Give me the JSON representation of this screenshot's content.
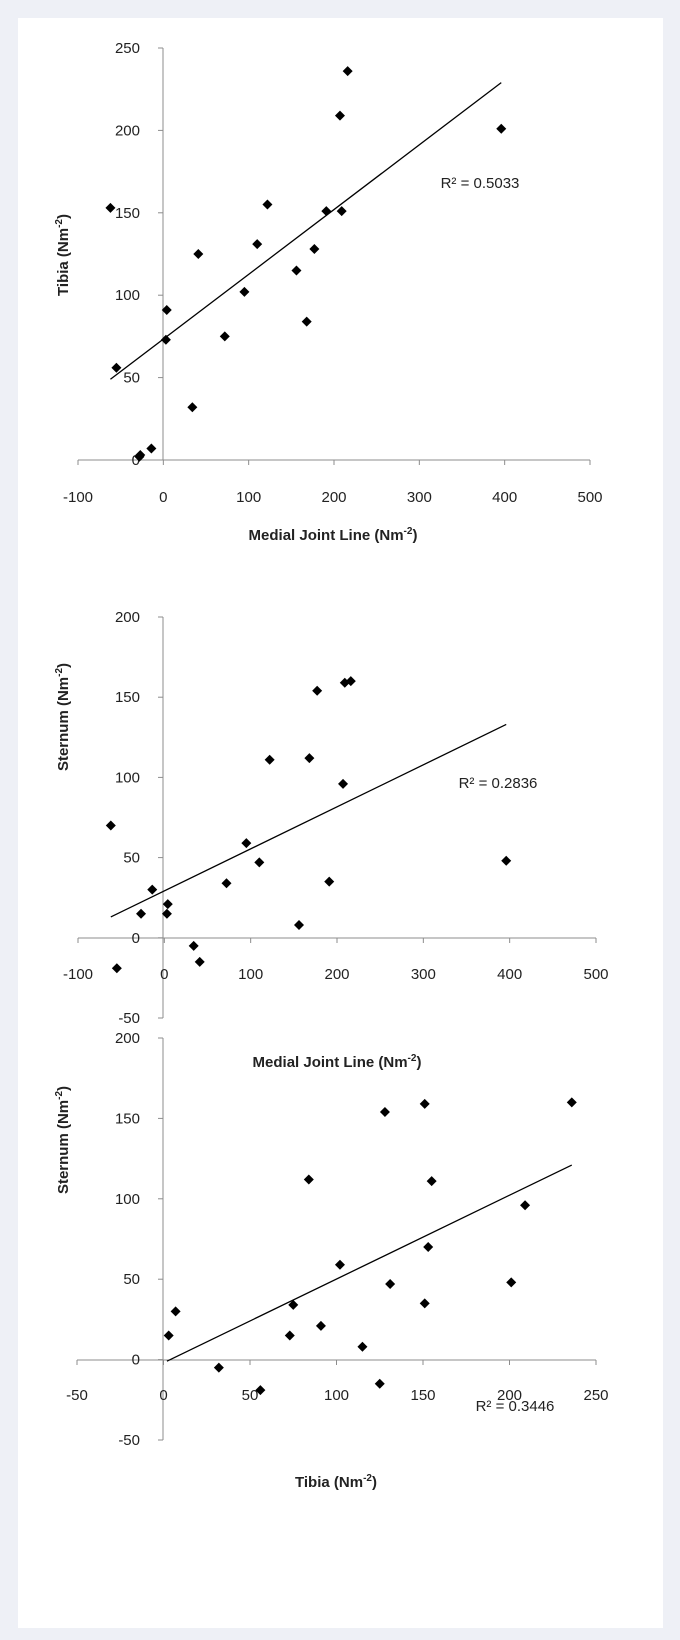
{
  "chart_data": [
    {
      "type": "scatter",
      "xlabel": "Medial Joint Line (Nm",
      "xlabel_sup": "-2",
      "xlabel_end": ")",
      "ylabel": "Tibia (Nm",
      "ylabel_sup": "-2",
      "ylabel_end": ")",
      "xlim": [
        -100,
        500
      ],
      "ylim": [
        0,
        250
      ],
      "xticks": [
        "-100",
        "0",
        "100",
        "200",
        "300",
        "400",
        "500"
      ],
      "yticks": [
        "0",
        "50",
        "100",
        "150",
        "200",
        "250"
      ],
      "x": [
        -62,
        -55,
        -28,
        -27,
        -14,
        3,
        4,
        34,
        41,
        72,
        95,
        110,
        122,
        156,
        168,
        177,
        191,
        207,
        209,
        216,
        396
      ],
      "y": [
        153,
        56,
        2,
        3,
        7,
        73,
        91,
        32,
        125,
        75,
        102,
        131,
        155,
        115,
        84,
        128,
        151,
        209,
        151,
        236,
        201
      ],
      "trendline": {
        "x": [
          -62,
          396
        ],
        "y": [
          49,
          229
        ]
      },
      "r_squared": "R² = 0.5033",
      "marker_color": "#000000"
    },
    {
      "type": "scatter",
      "xlabel": "Medial Joint Line (Nm",
      "xlabel_sup": "-2",
      "xlabel_end": ")",
      "ylabel": "Sternum (Nm",
      "ylabel_sup": "-2",
      "ylabel_end": ")",
      "xlim": [
        -100,
        500
      ],
      "ylim": [
        -50,
        200
      ],
      "xticks": [
        "-100",
        "0",
        "100",
        "200",
        "300",
        "400",
        "500"
      ],
      "yticks": [
        "-50",
        "0",
        "50",
        "100",
        "150",
        "200"
      ],
      "x": [
        -62,
        -55,
        -27,
        -14,
        3,
        4,
        34,
        41,
        72,
        95,
        110,
        122,
        156,
        168,
        177,
        191,
        207,
        209,
        216,
        396
      ],
      "y": [
        70,
        -19,
        15,
        30,
        15,
        21,
        -5,
        -15,
        34,
        59,
        47,
        111,
        8,
        112,
        154,
        35,
        96,
        159,
        160,
        48
      ],
      "trendline": {
        "x": [
          -62,
          396
        ],
        "y": [
          13,
          133
        ]
      },
      "r_squared": "R² = 0.2836",
      "marker_color": "#000000"
    },
    {
      "type": "scatter",
      "xlabel": "Tibia (Nm",
      "xlabel_sup": "-2",
      "xlabel_end": ")",
      "ylabel": "Sternum (Nm",
      "ylabel_sup": "-2",
      "ylabel_end": ")",
      "xlim": [
        -50,
        250
      ],
      "ylim": [
        -50,
        200
      ],
      "xticks": [
        "-50",
        "0",
        "50",
        "100",
        "150",
        "200",
        "250"
      ],
      "yticks": [
        "-50",
        "0",
        "50",
        "100",
        "150",
        "200"
      ],
      "x": [
        3,
        7,
        32,
        56,
        73,
        75,
        84,
        91,
        102,
        115,
        125,
        128,
        131,
        151,
        151,
        153,
        155,
        201,
        209,
        236
      ],
      "y": [
        15,
        30,
        -5,
        -19,
        15,
        34,
        112,
        21,
        59,
        8,
        -15,
        154,
        47,
        35,
        159,
        70,
        111,
        48,
        96,
        160
      ],
      "trendline": {
        "x": [
          2,
          236
        ],
        "y": [
          -1,
          121
        ]
      },
      "r_squared": "R² = 0.3446",
      "marker_color": "#000000"
    }
  ]
}
